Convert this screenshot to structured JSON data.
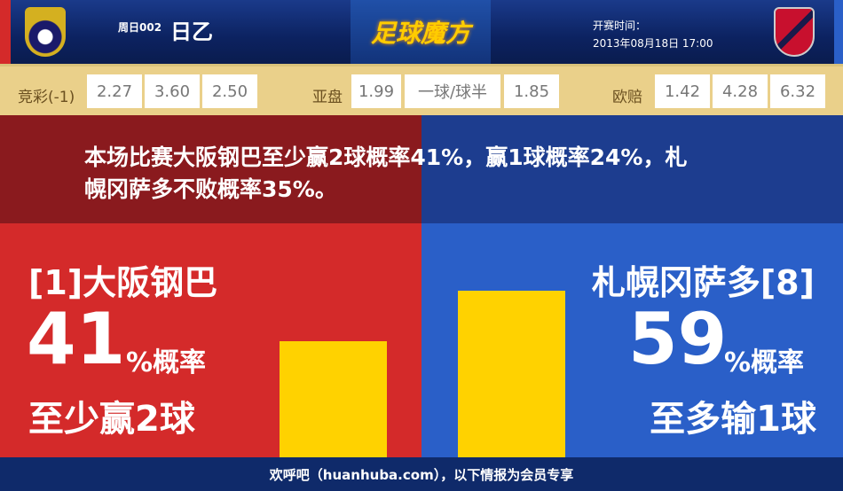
{
  "header": {
    "match_no": "周日002",
    "league": "日乙",
    "brand": "足球魔方",
    "kickoff_label": "开赛时间：",
    "kickoff_time": "2013年08月18日 17:00",
    "home_logo": "gamba-osaka-crest",
    "away_logo": "consadole-sapporo-crest"
  },
  "odds": {
    "jingcai_label": "竞彩(-1)",
    "jingcai": [
      "2.27",
      "3.60",
      "2.50"
    ],
    "asian_label": "亚盘",
    "asian": [
      "1.99",
      "一球/球半",
      "1.85"
    ],
    "euro_label": "欧赔",
    "euro": [
      "1.42",
      "4.28",
      "6.32"
    ]
  },
  "summary": "本场比赛大阪钢巴至少赢2球概率41%，赢1球概率24%，札幌冈萨多不败概率35%。",
  "home": {
    "name": "[1]大阪钢巴",
    "percent": "41",
    "percent_suffix": "%概率",
    "outcome": "至少赢2球",
    "probability": 41,
    "color": "#d42a2a"
  },
  "away": {
    "name": "札幌冈萨多[8]",
    "percent": "59",
    "percent_suffix": "%概率",
    "outcome": "至多输1球",
    "probability": 59,
    "color": "#2a5fc8"
  },
  "bar_color": "#ffd200",
  "footer": "欢呼吧（huanhuba.com），以下情报为会员专享"
}
